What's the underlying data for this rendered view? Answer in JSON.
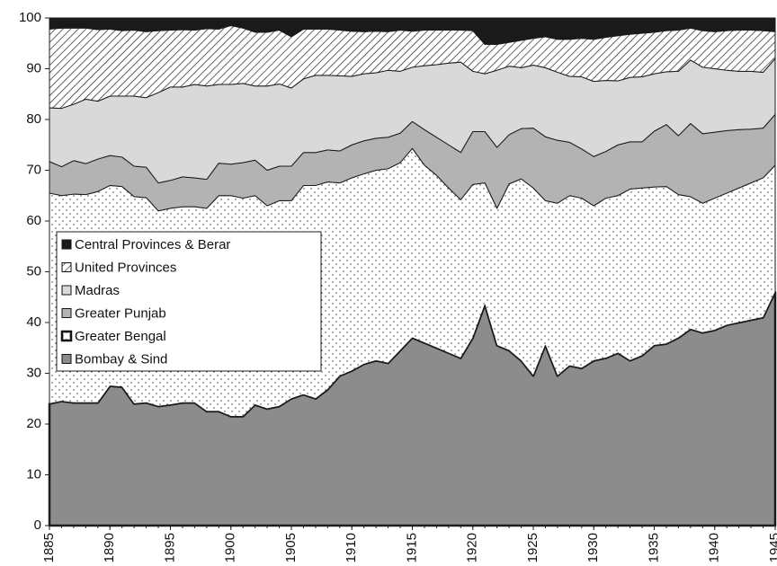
{
  "chart_data": {
    "type": "stacked_area",
    "x": [
      1885,
      1886,
      1887,
      1888,
      1889,
      1890,
      1891,
      1892,
      1893,
      1894,
      1895,
      1896,
      1897,
      1898,
      1899,
      1900,
      1901,
      1902,
      1903,
      1904,
      1905,
      1906,
      1907,
      1908,
      1909,
      1910,
      1911,
      1912,
      1913,
      1914,
      1915,
      1916,
      1917,
      1918,
      1919,
      1920,
      1921,
      1922,
      1923,
      1924,
      1925,
      1926,
      1927,
      1928,
      1929,
      1930,
      1931,
      1932,
      1933,
      1934,
      1935,
      1936,
      1937,
      1938,
      1939,
      1940,
      1941,
      1942,
      1943,
      1944,
      1945
    ],
    "series": [
      {
        "name": "Bombay & Sind",
        "color": "#8c8c8c",
        "values": [
          24,
          24.5,
          24.2,
          24.2,
          24.2,
          27.5,
          27.3,
          24,
          24.2,
          23.5,
          23.8,
          24.2,
          24.2,
          22.5,
          22.5,
          21.5,
          21.5,
          23.8,
          23,
          23.5,
          25,
          25.8,
          25,
          26.8,
          29.5,
          30.5,
          31.8,
          32.5,
          32,
          34.5,
          37,
          36,
          35,
          34,
          33,
          37,
          43.5,
          35.5,
          34.5,
          32.5,
          29.5,
          35.5,
          29.5,
          31.5,
          31,
          32.5,
          33,
          34,
          32.5,
          33.5,
          35.5,
          35.8,
          37,
          38.7,
          38,
          38.5,
          39.5,
          40,
          40.5,
          41,
          46
        ]
      },
      {
        "name": "Greater Bengal",
        "color": "#ffffff",
        "pattern": "dots",
        "values": [
          41.5,
          40.5,
          41.1,
          41,
          41.6,
          39.5,
          39.5,
          40.8,
          40.4,
          38.5,
          38.7,
          38.6,
          38.6,
          40,
          42.5,
          43.5,
          43,
          41.2,
          40,
          40.5,
          39,
          41.2,
          42,
          40.9,
          38,
          38,
          37.5,
          37.5,
          38.3,
          37,
          37.3,
          35,
          34,
          32.5,
          31.2,
          30.2,
          24,
          27,
          32.8,
          35.8,
          37,
          28.5,
          34,
          33.5,
          33.5,
          30.5,
          31.5,
          31,
          33.8,
          33,
          31.2,
          31,
          28.2,
          26.1,
          25.5,
          26,
          26,
          26.5,
          27,
          27.5,
          25
        ]
      },
      {
        "name": "Greater Punjab",
        "color": "#b3b3b3",
        "values": [
          6.2,
          5.7,
          6.6,
          6.1,
          6.4,
          5.9,
          5.8,
          6,
          6,
          5.5,
          5.5,
          5.9,
          5.7,
          5.7,
          6.4,
          6.2,
          7,
          7,
          7,
          6.8,
          6.8,
          6.5,
          6.5,
          6.3,
          6.3,
          6.5,
          6.5,
          6.3,
          6.2,
          5.8,
          5.3,
          7,
          7.5,
          8.5,
          9.3,
          10.4,
          10.1,
          12,
          9.7,
          9.9,
          11.8,
          12.6,
          12.4,
          10.5,
          9.7,
          9.7,
          9.2,
          10,
          9.3,
          9.1,
          11,
          12.2,
          11.6,
          14.4,
          13.7,
          13,
          12.3,
          11.5,
          10.6,
          9.8,
          10
        ]
      },
      {
        "name": "Madras",
        "color": "#d9d9d9",
        "values": [
          10.6,
          11.5,
          11.1,
          12.7,
          11.4,
          11.7,
          12,
          13.8,
          13.7,
          17.8,
          18.4,
          17.7,
          18.4,
          18.4,
          15.5,
          15.7,
          15.6,
          14.6,
          16.6,
          16.2,
          15.4,
          14.5,
          15.2,
          14.7,
          14.8,
          13.5,
          13.2,
          12.9,
          13.2,
          12.2,
          10.7,
          12.6,
          14.3,
          16.1,
          17.8,
          11.9,
          11.4,
          15.2,
          13.5,
          12,
          12.4,
          13.6,
          13.4,
          13,
          14.2,
          14.8,
          14,
          12.6,
          12.7,
          12.8,
          11.3,
          10.4,
          12.7,
          12.5,
          13.1,
          12.5,
          11.9,
          11.5,
          11.4,
          11,
          11
        ]
      },
      {
        "name": "United Provinces",
        "color": "#ffffff",
        "pattern": "hatch",
        "values": [
          15.5,
          15.8,
          15,
          14,
          14.1,
          13.2,
          12.9,
          13,
          13,
          12.2,
          11.2,
          11.3,
          10.7,
          11.3,
          10.9,
          11.6,
          10.9,
          10.6,
          10.6,
          10.6,
          10.1,
          9.8,
          9.1,
          9.1,
          9,
          8.9,
          8.3,
          8.2,
          7.6,
          8.1,
          7.1,
          7,
          6.8,
          6.5,
          6.3,
          8,
          5.8,
          5.1,
          4.7,
          5.4,
          5.3,
          6.1,
          6.5,
          7.3,
          7.6,
          8.3,
          8.5,
          8.9,
          8.5,
          8.6,
          8.2,
          8.1,
          8.1,
          6.3,
          7.2,
          7.3,
          7.8,
          8.1,
          8.1,
          8.2,
          5.3
        ]
      },
      {
        "name": "Central Provinces & Berar",
        "color": "#1a1a1a",
        "values": [
          2.2,
          2,
          2,
          2,
          2.3,
          2.2,
          2.5,
          2.4,
          2.7,
          2.5,
          2.4,
          2.3,
          2.4,
          2.1,
          2.2,
          1.5,
          2,
          2.8,
          2.8,
          2.4,
          3.7,
          2.2,
          2.2,
          2.2,
          2.4,
          2.6,
          2.7,
          2.6,
          2.7,
          2.4,
          2.6,
          2.4,
          2.4,
          2.4,
          2.4,
          2.5,
          5.2,
          5.2,
          4.8,
          4.4,
          4,
          3.7,
          4.2,
          4.2,
          4,
          4.2,
          3.8,
          3.5,
          3.2,
          3,
          2.8,
          2.5,
          2.4,
          2,
          2.5,
          2.7,
          2.5,
          2.4,
          2.4,
          2.5,
          2.7
        ]
      }
    ],
    "xlim": [
      1885,
      1945
    ],
    "xticks": [
      1885,
      1890,
      1895,
      1900,
      1905,
      1910,
      1915,
      1920,
      1925,
      1930,
      1935,
      1940,
      1945
    ],
    "ylim": [
      0,
      100
    ],
    "yticks": [
      0,
      10,
      20,
      30,
      40,
      50,
      60,
      70,
      80,
      90,
      100
    ],
    "legend": "center left"
  }
}
